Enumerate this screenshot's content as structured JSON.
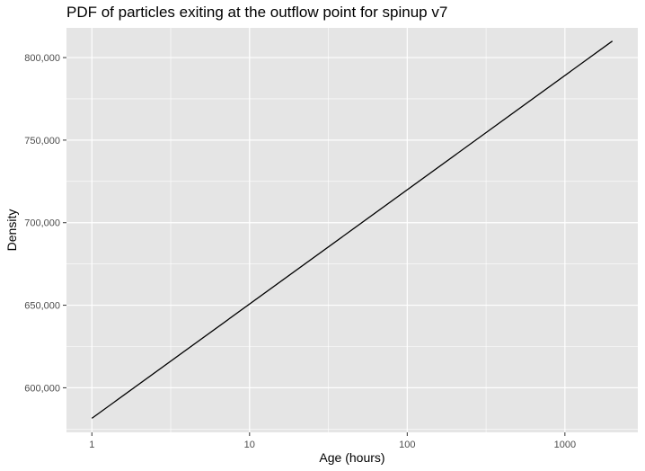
{
  "chart_data": {
    "type": "line",
    "title": "PDF of particles exiting at the outflow point for spinup v7",
    "xlabel": "Age (hours)",
    "ylabel": "Density",
    "x_scale": "log10",
    "xlim": [
      0.69,
      2900
    ],
    "ylim": [
      573000,
      818000
    ],
    "x_ticks": [
      1,
      10,
      100,
      1000
    ],
    "x_tick_labels": [
      "1",
      "10",
      "100",
      "1000"
    ],
    "y_ticks": [
      600000,
      650000,
      700000,
      750000,
      800000
    ],
    "y_tick_labels": [
      "600,000",
      "650,000",
      "700,000",
      "750,000",
      "800,000"
    ],
    "grid": true,
    "legend": "none",
    "colors": {
      "panel": "#e5e5e5",
      "grid": "#ffffff",
      "line": "#000000",
      "tick_text": "#4d4d4d"
    },
    "series": [
      {
        "x": [
          1,
          2000
        ],
        "y": [
          581500,
          810000
        ]
      }
    ]
  }
}
